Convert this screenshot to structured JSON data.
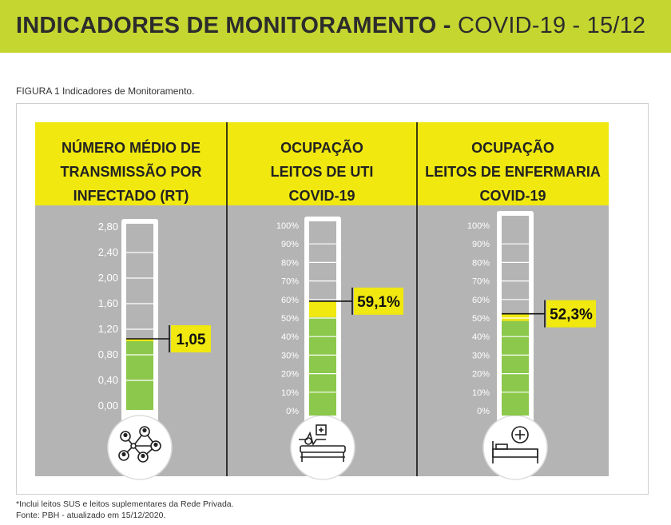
{
  "banner": {
    "title_bold": "INDICADORES DE MONITORAMENTO -",
    "title_light": "COVID-19 - 15/12"
  },
  "figure_caption": "FIGURA 1 Indicadores de Monitoramento.",
  "colors": {
    "yellow": "#f0e80f",
    "gray_panel": "#b4b4b4",
    "green": "#8cc84b",
    "tube_empty": "#b4b4b4",
    "banner": "#c5d631"
  },
  "footnotes": {
    "line1": "*Inclui leitos SUS e leitos suplementares da Rede Privada.",
    "line2": "Fonte: PBH - atualizado em 15/12/2020."
  },
  "chart_data": [
    {
      "type": "gauge",
      "title_lines": [
        "NÚMERO MÉDIO DE",
        "TRANSMISSÃO POR",
        "INFECTADO (RT)"
      ],
      "ticks": [
        "2,80",
        "2,40",
        "2,00",
        "1,60",
        "1,20",
        "0,80",
        "0,40",
        "0,00"
      ],
      "ylim": [
        0,
        2.8
      ],
      "value": 1.05,
      "value_label": "1,05",
      "icon": "network-people-icon"
    },
    {
      "type": "gauge",
      "title_lines": [
        "OCUPAÇÃO",
        "LEITOS DE UTI",
        "COVID-19"
      ],
      "ticks": [
        "100%",
        "90%",
        "80%",
        "70%",
        "60%",
        "50%",
        "40%",
        "30%",
        "20%",
        "10%",
        "0%"
      ],
      "ylim": [
        0,
        100
      ],
      "value": 59.1,
      "value_label": "59,1%",
      "icon": "icu-bed-icon"
    },
    {
      "type": "gauge",
      "title_lines": [
        "OCUPAÇÃO",
        "LEITOS DE ENFERMARIA",
        "COVID-19"
      ],
      "ticks": [
        "100%",
        "90%",
        "80%",
        "70%",
        "60%",
        "50%",
        "40%",
        "30%",
        "20%",
        "10%",
        "0%"
      ],
      "ylim": [
        0,
        100
      ],
      "value": 52.3,
      "value_label": "52,3%",
      "icon": "ward-bed-icon"
    }
  ]
}
